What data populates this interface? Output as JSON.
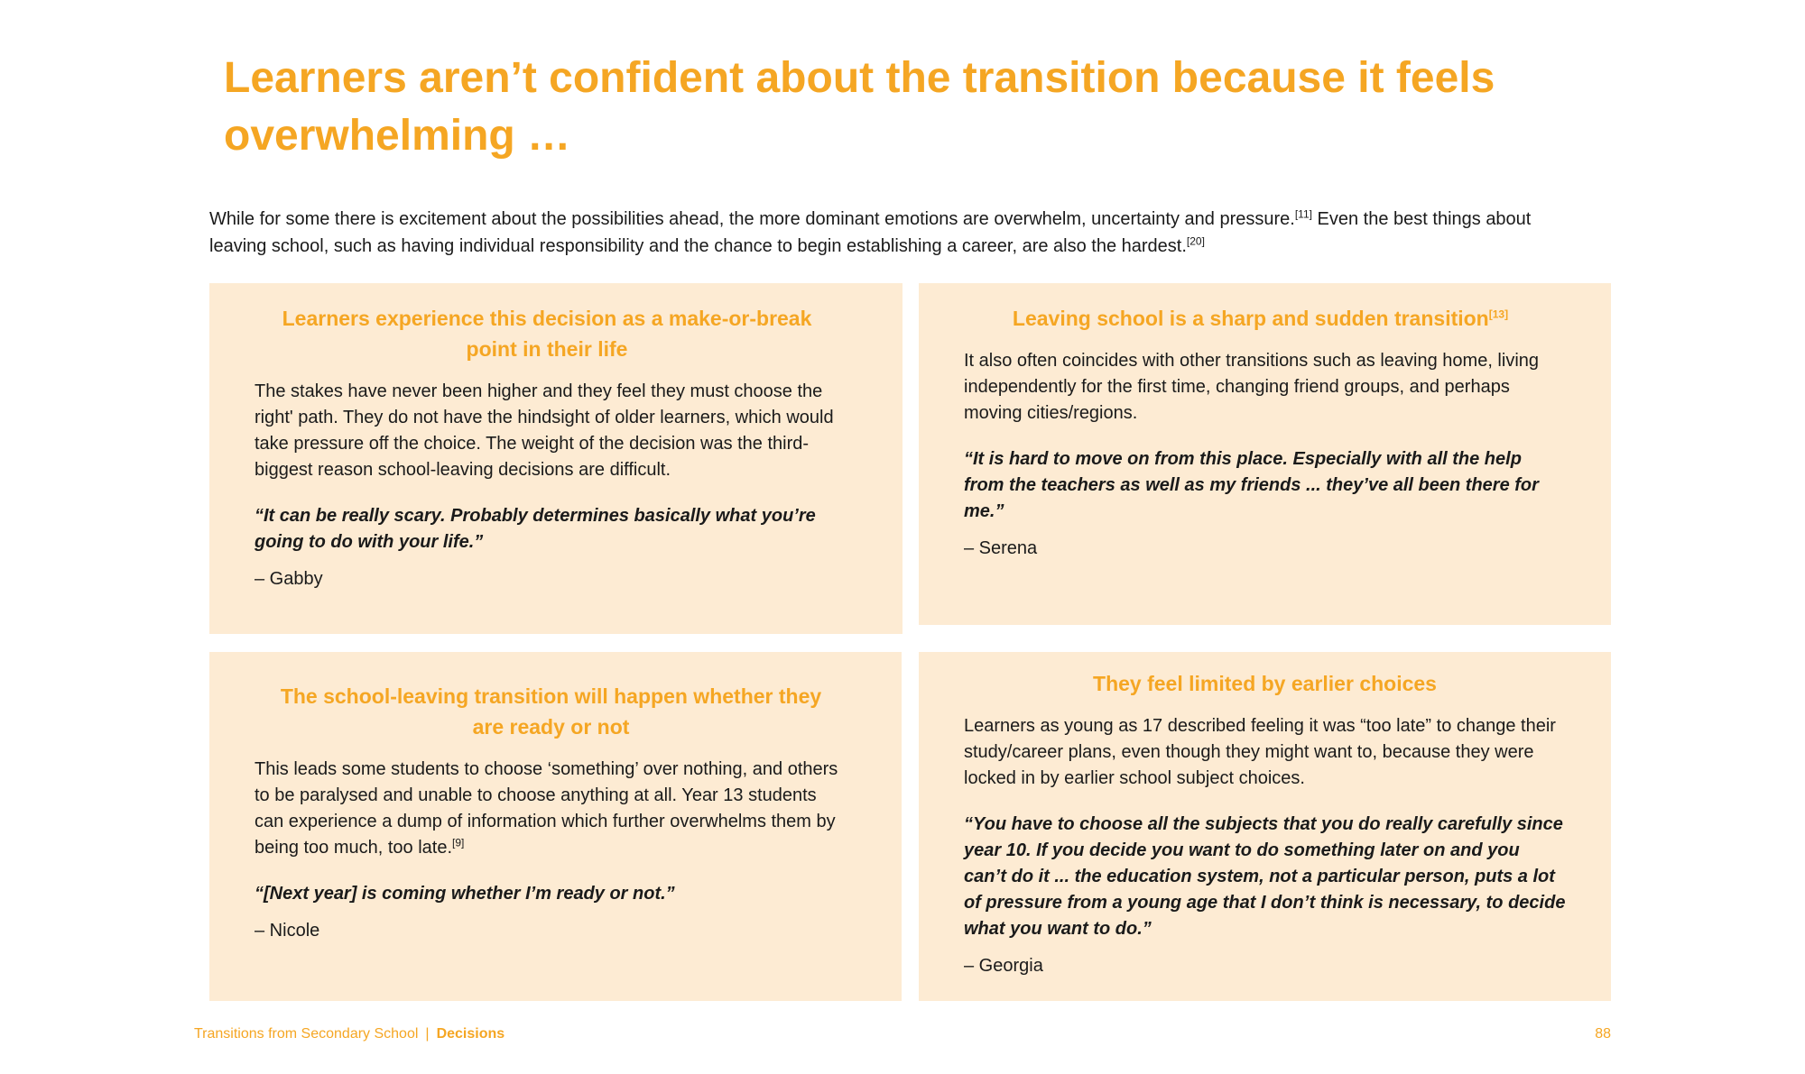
{
  "page_title": "Learners aren’t confident about the transition because it feels overwhelming …",
  "intro": {
    "part1": "While for some there is excitement about the possibilities ahead, the more dominant emotions are overwhelm, uncertainty and pressure.",
    "ref1": "[11]",
    "part2": " Even the best things about leaving school, such as having individual responsibility and the chance to begin establishing a career, are also the hardest.",
    "ref2": "[20]"
  },
  "cards": [
    {
      "title": "Learners experience this decision as a make-or-break point in their life",
      "body": "The stakes have never been higher and they feel they must choose the right' path. They do not have the hindsight of older learners, which would take pressure off the choice. The weight of the decision was the third-biggest reason school-leaving decisions are difficult.",
      "quote": "“It can be really scary. Probably determines basically what you’re going to do with your life.”",
      "attribution": "– Gabby"
    },
    {
      "title": "Leaving school is a sharp and sudden transition",
      "title_ref": "[13]",
      "body": "It also often coincides with other transitions such as leaving home, living independently for the first time, changing friend groups, and perhaps moving cities/regions.",
      "quote": "“It is hard to move on from this place. Especially with all the help from the teachers as well as my friends ... they’ve all been there for me.”",
      "attribution": "– Serena"
    },
    {
      "title": "The school-leaving transition will happen whether they are ready or not",
      "body": "This leads some students to choose ‘something’ over nothing, and others to be paralysed and unable to choose anything at all. Year 13 students can experience a dump of information which further overwhelms them by being too much, too late.",
      "body_ref": "[9]",
      "quote": "“[Next year] is coming whether I’m ready or not.”",
      "attribution": "– Nicole"
    },
    {
      "title": "They feel limited by earlier choices",
      "body": "Learners as young as 17 described feeling it was “too late” to change their study/career plans, even though they might want to, because they were locked in by earlier school subject choices.",
      "quote": "“You have to choose all the subjects that you do really carefully since year 10. If you decide you want to do something later on and you can’t do it ... the education system, not a particular person, puts a lot of pressure from a young age that I don’t think is necessary, to decide what you want to do.”",
      "attribution": "– Georgia"
    }
  ],
  "footer": {
    "document": "Transitions from Secondary School",
    "separator": "|",
    "section": "Decisions",
    "page_number": "88"
  },
  "colors": {
    "accent": "#f5a623",
    "card_background": "#fdebd3",
    "text": "#1a1a1a"
  }
}
